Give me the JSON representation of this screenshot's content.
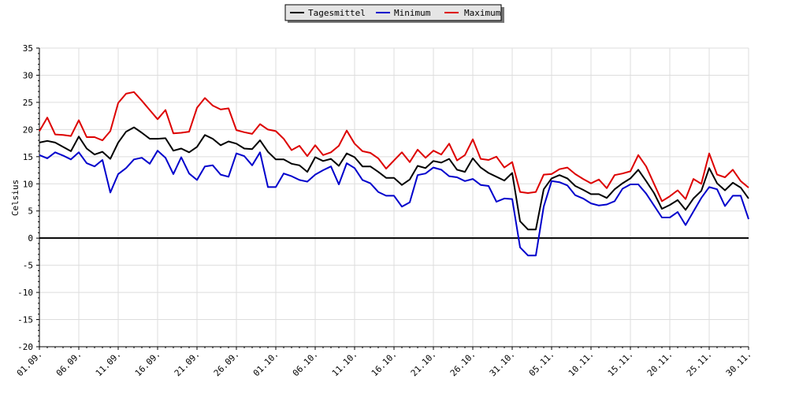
{
  "chart_data": {
    "type": "line",
    "ylabel": "Celsius",
    "ylim": [
      -20,
      35
    ],
    "yticks": [
      35,
      30,
      25,
      20,
      15,
      10,
      5,
      0,
      -5,
      -10,
      -15,
      -20
    ],
    "grid": true,
    "legend_position": "top-center",
    "x_tick_labels": [
      "01.09.",
      "06.09.",
      "11.09.",
      "16.09.",
      "21.09.",
      "26.09.",
      "01.10.",
      "06.10.",
      "11.10.",
      "16.10.",
      "21.10.",
      "26.10.",
      "31.10.",
      "05.11.",
      "10.11.",
      "15.11.",
      "20.11.",
      "25.11.",
      "30.11."
    ],
    "x_tick_every_days": 5,
    "days": 91,
    "series": [
      {
        "name": "Tagesmittel",
        "color": "#000000",
        "values": [
          17.6,
          17.9,
          17.6,
          16.8,
          16.0,
          18.7,
          16.5,
          15.4,
          15.9,
          14.6,
          17.6,
          19.6,
          20.4,
          19.4,
          18.3,
          18.3,
          18.4,
          16.1,
          16.5,
          15.8,
          16.8,
          19.0,
          18.3,
          17.1,
          17.8,
          17.4,
          16.5,
          16.4,
          18.0,
          15.9,
          14.5,
          14.5,
          13.7,
          13.4,
          12.2,
          14.9,
          14.2,
          14.6,
          13.3,
          15.6,
          14.9,
          13.2,
          13.2,
          12.2,
          11.1,
          11.1,
          9.8,
          10.8,
          13.3,
          12.9,
          14.2,
          13.9,
          14.6,
          12.6,
          12.2,
          14.7,
          13.0,
          12.0,
          11.3,
          10.6,
          12.0,
          3.1,
          1.6,
          1.6,
          9.0,
          11.0,
          11.6,
          11.0,
          9.6,
          8.9,
          8.1,
          8.1,
          7.4,
          9.0,
          10.1,
          11.0,
          12.6,
          10.5,
          8.3,
          5.4,
          6.1,
          7.0,
          5.2,
          7.3,
          8.7,
          12.9,
          10.1,
          8.8,
          10.2,
          9.3,
          7.3
        ]
      },
      {
        "name": "Minimum",
        "color": "#0000cc",
        "values": [
          15.3,
          14.7,
          15.8,
          15.2,
          14.5,
          15.8,
          13.8,
          13.2,
          14.4,
          8.4,
          11.8,
          12.9,
          14.5,
          14.8,
          13.7,
          16.1,
          14.8,
          11.8,
          14.9,
          11.9,
          10.7,
          13.2,
          13.4,
          11.7,
          11.3,
          15.6,
          15.1,
          13.4,
          15.8,
          9.4,
          9.4,
          11.9,
          11.4,
          10.7,
          10.4,
          11.7,
          12.5,
          13.2,
          9.9,
          13.8,
          12.9,
          10.7,
          10.1,
          8.5,
          7.8,
          7.8,
          5.8,
          6.6,
          11.6,
          11.9,
          13.0,
          12.6,
          11.4,
          11.2,
          10.5,
          10.9,
          9.8,
          9.6,
          6.7,
          7.3,
          7.2,
          -1.7,
          -3.2,
          -3.2,
          5.8,
          10.5,
          10.3,
          9.7,
          7.9,
          7.3,
          6.4,
          6.0,
          6.2,
          6.8,
          9.1,
          9.9,
          9.9,
          8.2,
          6.0,
          3.8,
          3.8,
          4.8,
          2.4,
          4.9,
          7.4,
          9.4,
          9.0,
          5.9,
          7.8,
          7.8,
          3.5
        ]
      },
      {
        "name": "Maximum",
        "color": "#dd0000",
        "values": [
          19.7,
          22.2,
          19.1,
          19.0,
          18.8,
          21.7,
          18.6,
          18.6,
          18.0,
          19.7,
          24.9,
          26.6,
          26.9,
          25.3,
          23.6,
          21.9,
          23.6,
          19.3,
          19.4,
          19.6,
          24.0,
          25.8,
          24.4,
          23.7,
          23.9,
          19.9,
          19.5,
          19.2,
          21.0,
          20.0,
          19.7,
          18.3,
          16.2,
          17.0,
          15.1,
          17.1,
          15.3,
          15.8,
          17.0,
          19.8,
          17.4,
          16.0,
          15.7,
          14.7,
          12.8,
          14.3,
          15.8,
          14.0,
          16.3,
          14.8,
          16.1,
          15.4,
          17.4,
          14.3,
          15.3,
          18.2,
          14.6,
          14.4,
          15.0,
          13.0,
          14.0,
          8.5,
          8.3,
          8.5,
          11.7,
          11.8,
          12.7,
          13.0,
          11.8,
          10.9,
          10.1,
          10.8,
          9.2,
          11.6,
          11.9,
          12.3,
          15.3,
          13.2,
          10.0,
          6.8,
          7.7,
          8.8,
          7.2,
          10.9,
          10.0,
          15.6,
          11.7,
          11.2,
          12.6,
          10.5,
          9.3
        ]
      }
    ]
  }
}
